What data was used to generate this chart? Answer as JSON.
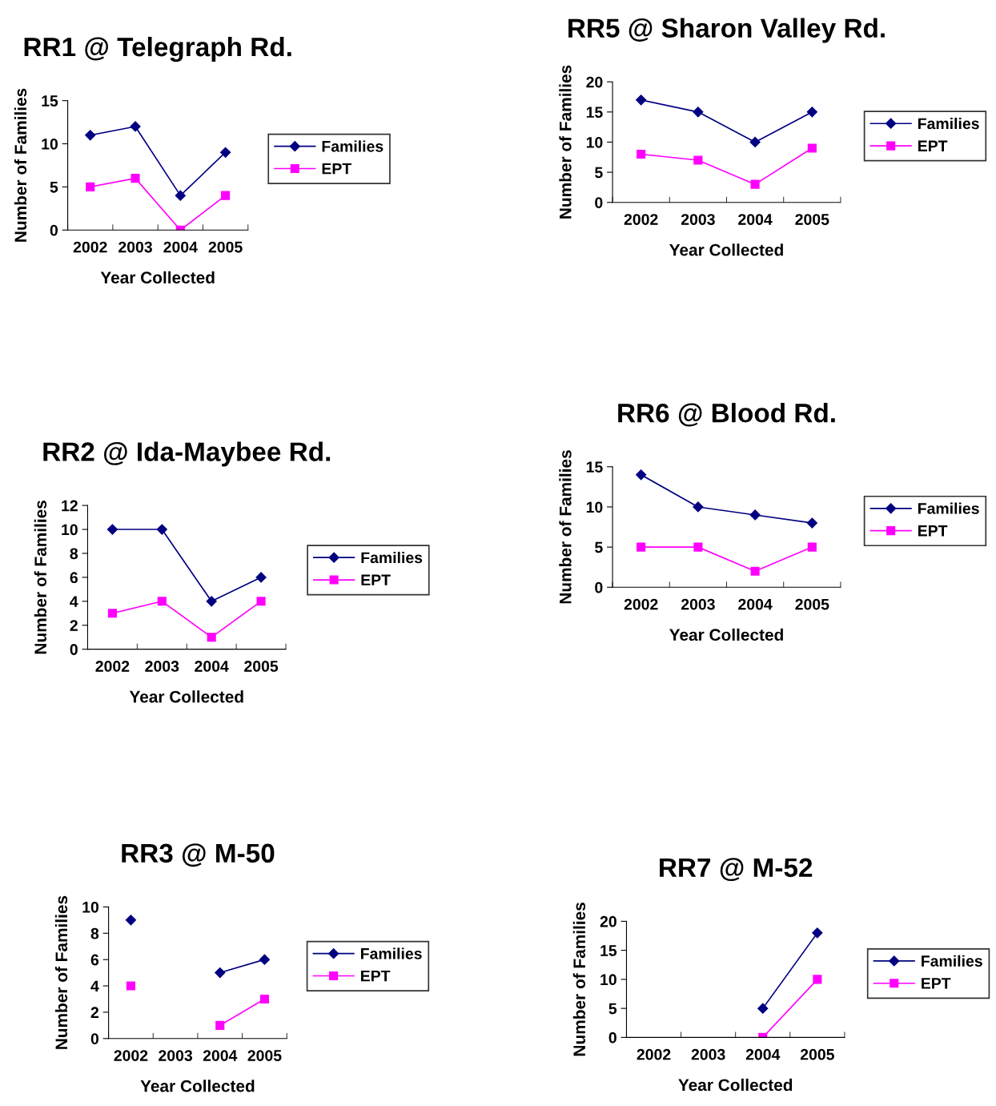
{
  "chart_data": [
    {
      "type": "line",
      "title": "RR1 @ Telegraph Rd.",
      "xlabel": "Year Collected",
      "ylabel": "Number of Families",
      "categories": [
        "2002",
        "2003",
        "2004",
        "2005"
      ],
      "ylim": [
        0,
        15
      ],
      "yticks": [
        0,
        5,
        10,
        15
      ],
      "legend": "right",
      "series": [
        {
          "name": "Families",
          "color": "#000080",
          "marker": "diamond",
          "values": [
            11,
            12,
            4,
            9
          ]
        },
        {
          "name": "EPT",
          "color": "#ff00ff",
          "marker": "square",
          "values": [
            5,
            6,
            0,
            4
          ]
        }
      ]
    },
    {
      "type": "line",
      "title": "RR5 @ Sharon Valley Rd.",
      "xlabel": "Year Collected",
      "ylabel": "Number of Families",
      "categories": [
        "2002",
        "2003",
        "2004",
        "2005"
      ],
      "ylim": [
        0,
        20
      ],
      "yticks": [
        0,
        5,
        10,
        15,
        20
      ],
      "legend": "right",
      "series": [
        {
          "name": "Families",
          "color": "#000080",
          "marker": "diamond",
          "values": [
            17,
            15,
            10,
            15
          ]
        },
        {
          "name": "EPT",
          "color": "#ff00ff",
          "marker": "square",
          "values": [
            8,
            7,
            3,
            9
          ]
        }
      ]
    },
    {
      "type": "line",
      "title": "RR2 @ Ida-Maybee Rd.",
      "xlabel": "Year Collected",
      "ylabel": "Number of Families",
      "categories": [
        "2002",
        "2003",
        "2004",
        "2005"
      ],
      "ylim": [
        0,
        12
      ],
      "yticks": [
        0,
        2,
        4,
        6,
        8,
        10,
        12
      ],
      "legend": "right",
      "series": [
        {
          "name": "Families",
          "color": "#000080",
          "marker": "diamond",
          "values": [
            10,
            10,
            4,
            6
          ]
        },
        {
          "name": "EPT",
          "color": "#ff00ff",
          "marker": "square",
          "values": [
            3,
            4,
            1,
            4
          ]
        }
      ]
    },
    {
      "type": "line",
      "title": "RR6 @ Blood Rd.",
      "xlabel": "Year Collected",
      "ylabel": "Number of Families",
      "categories": [
        "2002",
        "2003",
        "2004",
        "2005"
      ],
      "ylim": [
        0,
        15
      ],
      "yticks": [
        0,
        5,
        10,
        15
      ],
      "legend": "right",
      "series": [
        {
          "name": "Families",
          "color": "#000080",
          "marker": "diamond",
          "values": [
            14,
            10,
            9,
            8
          ]
        },
        {
          "name": "EPT",
          "color": "#ff00ff",
          "marker": "square",
          "values": [
            5,
            5,
            2,
            5
          ]
        }
      ]
    },
    {
      "type": "line",
      "title": "RR3 @ M-50",
      "xlabel": "Year Collected",
      "ylabel": "Number of Families",
      "categories": [
        "2002",
        "2003",
        "2004",
        "2005"
      ],
      "ylim": [
        0,
        10
      ],
      "yticks": [
        0,
        2,
        4,
        6,
        8,
        10
      ],
      "legend": "right",
      "series": [
        {
          "name": "Families",
          "color": "#000080",
          "marker": "diamond",
          "values": [
            9,
            null,
            5,
            6
          ]
        },
        {
          "name": "EPT",
          "color": "#ff00ff",
          "marker": "square",
          "values": [
            4,
            null,
            1,
            3
          ]
        }
      ]
    },
    {
      "type": "line",
      "title": "RR7 @ M-52",
      "xlabel": "Year Collected",
      "ylabel": "Number of Families",
      "categories": [
        "2002",
        "2003",
        "2004",
        "2005"
      ],
      "ylim": [
        0,
        20
      ],
      "yticks": [
        0,
        5,
        10,
        15,
        20
      ],
      "legend": "right",
      "series": [
        {
          "name": "Families",
          "color": "#000080",
          "marker": "diamond",
          "values": [
            null,
            null,
            5,
            18
          ]
        },
        {
          "name": "EPT",
          "color": "#ff00ff",
          "marker": "square",
          "values": [
            null,
            null,
            0,
            10
          ]
        }
      ]
    }
  ]
}
